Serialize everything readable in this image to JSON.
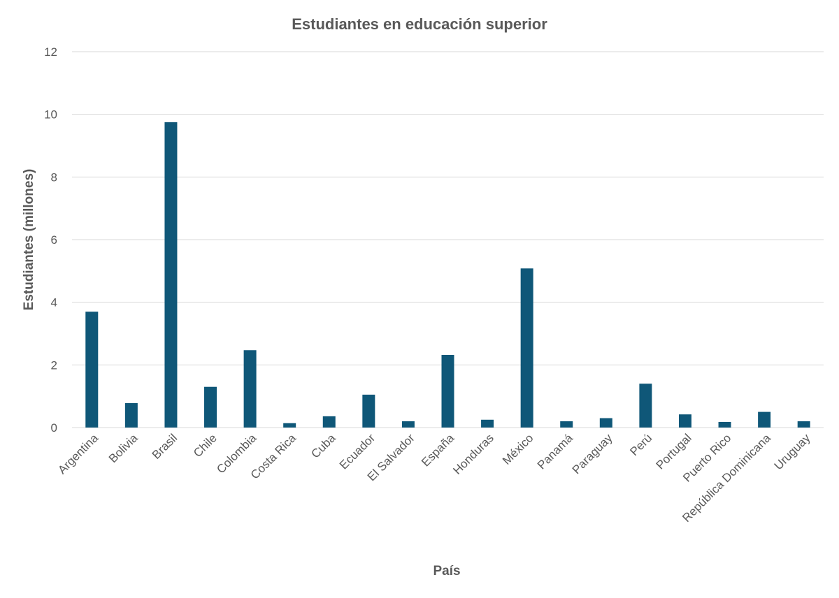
{
  "chart_data": {
    "type": "bar",
    "title": "Estudiantes en educación superior",
    "xlabel": "País",
    "ylabel": "Estudiantes (millones)",
    "ylim": [
      0,
      12
    ],
    "yticks": [
      "0",
      "2",
      "4",
      "6",
      "8",
      "10",
      "12"
    ],
    "grid": true,
    "legend": "none",
    "color": "#0f5778",
    "categories": [
      "Argentina",
      "Bolivia",
      "Brasil",
      "Chile",
      "Colombia",
      "Costa Rica",
      "Cuba",
      "Ecuador",
      "El Salvador",
      "España",
      "Honduras",
      "México",
      "Panamá",
      "Paraguay",
      "Perú",
      "Portugal",
      "Puerto Rico",
      "República Dominicana",
      "Uruguay"
    ],
    "values": [
      3.7,
      0.78,
      9.75,
      1.3,
      2.47,
      0.14,
      0.36,
      1.05,
      0.2,
      2.32,
      0.25,
      5.08,
      0.2,
      0.3,
      1.4,
      0.42,
      0.18,
      0.5,
      0.2
    ]
  }
}
